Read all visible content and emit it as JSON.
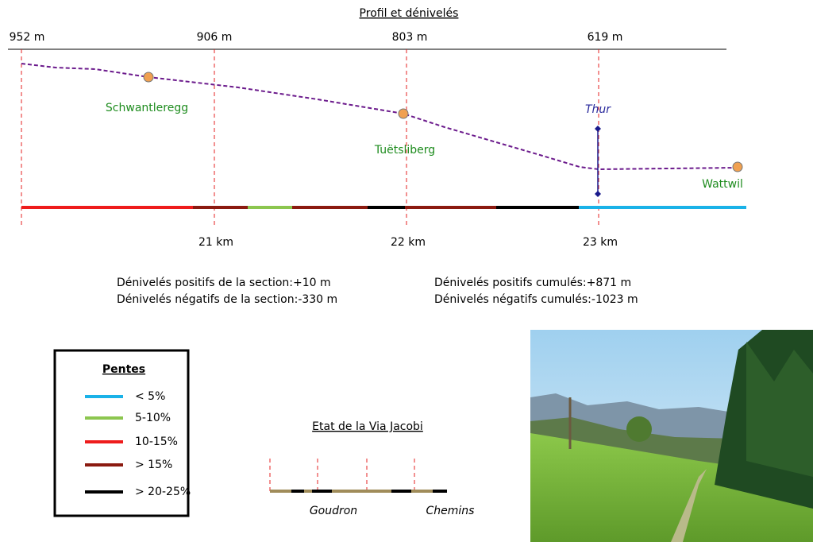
{
  "header": {
    "title": "Profil et dénivelés"
  },
  "profile": {
    "elevations": [
      "952 m",
      "906 m",
      "803 m",
      "619 m"
    ],
    "distances": [
      "21 km",
      "22 km",
      "23 km"
    ],
    "places": [
      "Schwantleregg",
      "Tuëtsliberg",
      "Wattwil"
    ],
    "river": "Thur"
  },
  "stats": {
    "section": [
      "Dénivelés positifs de la section:+10 m",
      "Dénivelés négatifs de la section:-330 m"
    ],
    "cumulative": [
      "Dénivelés positifs cumulés:+871 m",
      "Dénivelés négatifs cumulés:-1023 m"
    ]
  },
  "legend": {
    "title": "Pentes",
    "items": [
      {
        "label": "< 5%",
        "color": "#1ab2e8"
      },
      {
        "label": "5-10%",
        "color": "#8cc64f"
      },
      {
        "label": "10-15%",
        "color": "#ee1c1c"
      },
      {
        "label": "> 15%",
        "color": "#8b1a10"
      },
      {
        "label": "> 20-25%",
        "color": "#000000"
      }
    ]
  },
  "surface": {
    "title": "Etat de la Via Jacobi",
    "labels": [
      "Goudron",
      "Chemins"
    ]
  }
}
